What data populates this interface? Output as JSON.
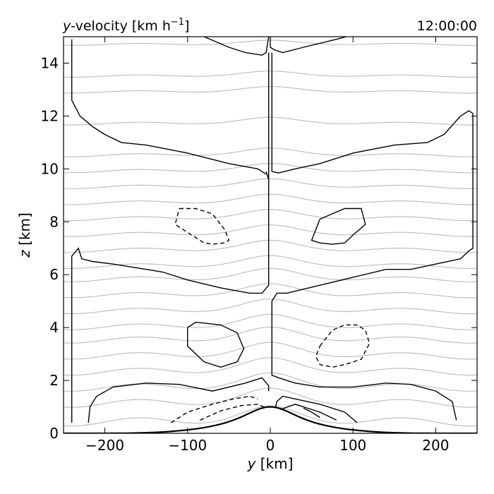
{
  "chart_data": {
    "type": "contour",
    "title": "y-velocity [km h⁻¹]",
    "title_parts": {
      "var": "y",
      "rest": "-velocity [km h",
      "sup": "−1",
      "close": "]"
    },
    "time_label": "12:00:00",
    "xlabel": {
      "var": "y",
      "unit": " [km]"
    },
    "ylabel": {
      "var": "z",
      "unit": " [km]"
    },
    "xlim": [
      -250,
      250
    ],
    "ylim": [
      0,
      15
    ],
    "xticks": [
      -200,
      -100,
      0,
      100,
      200
    ],
    "xtick_labels": [
      "−200",
      "−100",
      "0",
      "100",
      "200"
    ],
    "yticks": [
      0,
      2,
      4,
      6,
      8,
      10,
      12,
      14
    ],
    "ytick_labels": [
      "0",
      "2",
      "4",
      "6",
      "8",
      "10",
      "12",
      "14"
    ],
    "grid": false,
    "colors": {
      "positive_contour": "#000000",
      "negative_contour": "#000000",
      "isentropes": "#c0c0c0",
      "terrain": "#000000"
    },
    "terrain": {
      "peak_height_km": 1.0,
      "half_width_km": 50
    },
    "isentropes": {
      "count": 22,
      "base_heights_km": [
        0.4,
        1.1,
        1.7,
        2.3,
        2.9,
        3.5,
        4.0,
        4.6,
        5.2,
        5.8,
        6.3,
        6.9,
        7.5,
        8.1,
        8.7,
        9.3,
        9.9,
        10.5,
        11.7,
        12.9,
        13.5,
        14.7
      ]
    },
    "contours": [
      {
        "sign": "positive",
        "points": [
          [
            -240,
            14.9
          ],
          [
            -240,
            12.6
          ],
          [
            -230,
            12.0
          ],
          [
            -215,
            11.6
          ],
          [
            -200,
            11.3
          ],
          [
            -180,
            11.0
          ],
          [
            -150,
            10.9
          ],
          [
            -100,
            10.6
          ],
          [
            -50,
            10.2
          ],
          [
            -15,
            10.0
          ],
          [
            -5,
            9.8
          ]
        ]
      },
      {
        "sign": "positive",
        "points": [
          [
            -80,
            15.0
          ],
          [
            -50,
            14.6
          ],
          [
            -30,
            14.4
          ],
          [
            -10,
            14.3
          ],
          [
            -5,
            14.4
          ],
          [
            -2,
            15.0
          ]
        ]
      },
      {
        "sign": "positive",
        "points": [
          [
            0,
            15.0
          ],
          [
            0,
            14.6
          ],
          [
            5,
            14.5
          ],
          [
            15,
            14.4
          ],
          [
            40,
            14.6
          ],
          [
            80,
            14.9
          ],
          [
            92,
            15.0
          ]
        ]
      },
      {
        "sign": "positive",
        "points": [
          [
            -2,
            14.4
          ],
          [
            -2,
            12.0
          ],
          [
            -2,
            9.6
          ],
          [
            -5,
            9.9
          ]
        ]
      },
      {
        "sign": "positive",
        "points": [
          [
            2,
            14.4
          ],
          [
            2,
            12.0
          ],
          [
            2,
            9.9
          ],
          [
            10,
            9.85
          ],
          [
            30,
            10.0
          ],
          [
            60,
            10.2
          ],
          [
            100,
            10.6
          ],
          [
            150,
            10.9
          ],
          [
            190,
            11.0
          ],
          [
            210,
            11.3
          ],
          [
            230,
            12.0
          ],
          [
            240,
            12.2
          ],
          [
            245,
            12.1
          ],
          [
            245,
            7.0
          ],
          [
            240,
            6.9
          ],
          [
            230,
            6.6
          ],
          [
            200,
            6.4
          ],
          [
            170,
            6.2
          ],
          [
            140,
            6.2
          ],
          [
            100,
            5.9
          ],
          [
            60,
            5.6
          ],
          [
            20,
            5.3
          ],
          [
            8,
            5.3
          ],
          [
            2,
            5.0
          ],
          [
            2,
            3.8
          ],
          [
            2,
            2.2
          ],
          [
            10,
            2.1
          ],
          [
            30,
            1.9
          ],
          [
            60,
            1.75
          ],
          [
            100,
            1.75
          ],
          [
            140,
            1.9
          ],
          [
            170,
            1.85
          ],
          [
            200,
            1.6
          ],
          [
            220,
            1.2
          ],
          [
            225,
            0.5
          ]
        ]
      },
      {
        "sign": "positive",
        "points": [
          [
            -240,
            0.4
          ],
          [
            -240,
            6.7
          ],
          [
            -232,
            7.0
          ],
          [
            -228,
            6.6
          ],
          [
            -215,
            6.5
          ],
          [
            -190,
            6.4
          ],
          [
            -150,
            6.2
          ],
          [
            -130,
            6.1
          ],
          [
            -100,
            5.8
          ],
          [
            -60,
            5.5
          ],
          [
            -25,
            5.3
          ],
          [
            -10,
            5.3
          ],
          [
            -2,
            5.6
          ],
          [
            -2,
            9.6
          ]
        ]
      },
      {
        "sign": "positive",
        "points": [
          [
            -220,
            0.4
          ],
          [
            -218,
            1.0
          ],
          [
            -210,
            1.4
          ],
          [
            -190,
            1.75
          ],
          [
            -150,
            1.9
          ],
          [
            -110,
            1.85
          ],
          [
            -70,
            1.6
          ],
          [
            -30,
            1.9
          ],
          [
            -10,
            2.1
          ],
          [
            -2,
            1.8
          ],
          [
            -2,
            1.6
          ]
        ]
      },
      {
        "sign": "positive",
        "points": [
          [
            -100,
            4.0
          ],
          [
            -90,
            4.2
          ],
          [
            -60,
            4.1
          ],
          [
            -40,
            3.8
          ],
          [
            -32,
            3.2
          ],
          [
            -40,
            2.7
          ],
          [
            -60,
            2.5
          ],
          [
            -80,
            2.7
          ],
          [
            -100,
            3.3
          ],
          [
            -100,
            4.0
          ]
        ]
      },
      {
        "sign": "positive",
        "points": [
          [
            60,
            8.1
          ],
          [
            90,
            8.5
          ],
          [
            110,
            8.5
          ],
          [
            115,
            7.9
          ],
          [
            100,
            7.5
          ],
          [
            90,
            7.2
          ],
          [
            75,
            7.15
          ],
          [
            60,
            7.2
          ],
          [
            50,
            7.3
          ],
          [
            60,
            8.1
          ]
        ]
      },
      {
        "sign": "positive",
        "points": [
          [
            6,
            0.95
          ],
          [
            8,
            1.2
          ],
          [
            15,
            1.4
          ],
          [
            30,
            1.3
          ],
          [
            60,
            1.1
          ],
          [
            90,
            0.8
          ],
          [
            105,
            0.4
          ]
        ]
      },
      {
        "sign": "positive",
        "points": [
          [
            12,
            0.9
          ],
          [
            30,
            1.1
          ],
          [
            60,
            0.8
          ],
          [
            80,
            0.5
          ]
        ]
      },
      {
        "sign": "positive",
        "points": [
          [
            40,
            0.95
          ],
          [
            50,
            0.8
          ],
          [
            60,
            0.6
          ]
        ]
      },
      {
        "sign": "negative",
        "points": [
          [
            -110,
            8.5
          ],
          [
            -90,
            8.5
          ],
          [
            -70,
            8.3
          ],
          [
            -55,
            7.7
          ],
          [
            -50,
            7.3
          ],
          [
            -55,
            7.2
          ],
          [
            -70,
            7.15
          ],
          [
            -80,
            7.2
          ],
          [
            -100,
            7.6
          ],
          [
            -115,
            7.9
          ],
          [
            -110,
            8.5
          ]
        ]
      },
      {
        "sign": "negative",
        "points": [
          [
            60,
            3.3
          ],
          [
            75,
            3.9
          ],
          [
            90,
            4.1
          ],
          [
            105,
            4.1
          ],
          [
            115,
            3.9
          ],
          [
            120,
            3.4
          ],
          [
            110,
            2.8
          ],
          [
            90,
            2.6
          ],
          [
            75,
            2.5
          ],
          [
            60,
            2.6
          ],
          [
            55,
            2.9
          ],
          [
            60,
            3.3
          ]
        ]
      },
      {
        "sign": "negative",
        "points": [
          [
            -120,
            0.4
          ],
          [
            -100,
            0.8
          ],
          [
            -70,
            1.1
          ],
          [
            -45,
            1.3
          ],
          [
            -25,
            1.4
          ],
          [
            -15,
            1.3
          ]
        ]
      },
      {
        "sign": "negative",
        "points": [
          [
            -85,
            0.5
          ],
          [
            -60,
            0.85
          ],
          [
            -35,
            1.05
          ],
          [
            -15,
            1.1
          ],
          [
            -8,
            1.0
          ]
        ]
      }
    ]
  }
}
